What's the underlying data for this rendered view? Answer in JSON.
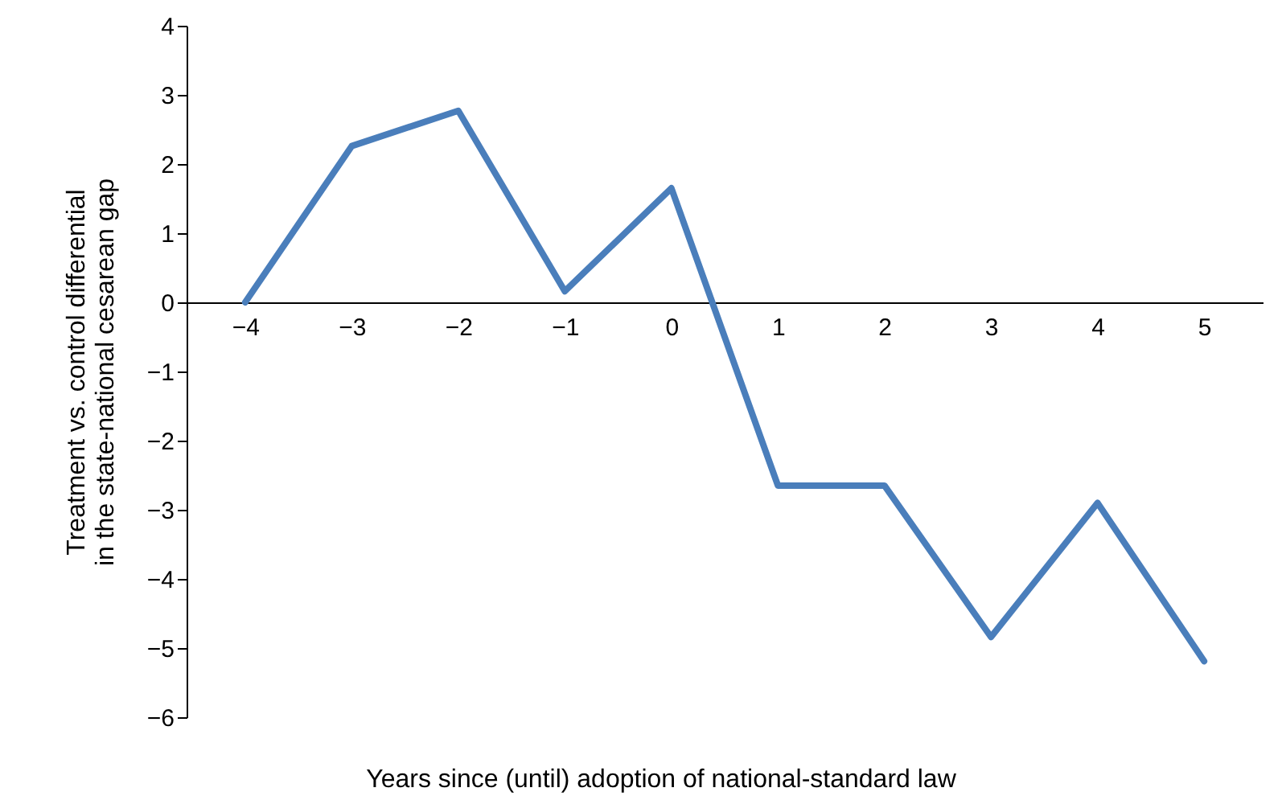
{
  "chart_data": {
    "type": "line",
    "xlabel": "Years since (until) adoption of national-standard law",
    "ylabel": "Treatment vs. control differential\nin the state-national cesarean gap",
    "categories": [
      "−4",
      "−3",
      "−2",
      "−1",
      "0",
      "1",
      "2",
      "3",
      "4",
      "5"
    ],
    "series": [
      {
        "color": "#4a7ebb",
        "values": [
          0,
          2.26,
          2.77,
          0.16,
          1.65,
          -2.65,
          -2.65,
          -4.84,
          -2.9,
          -5.19
        ]
      }
    ],
    "ylim": [
      -6,
      4
    ],
    "yticks": [
      -6,
      -5,
      -4,
      -3,
      -2,
      -1,
      0,
      1,
      2,
      3,
      4
    ],
    "grid": false,
    "marker": "none",
    "line_style": "solid"
  }
}
